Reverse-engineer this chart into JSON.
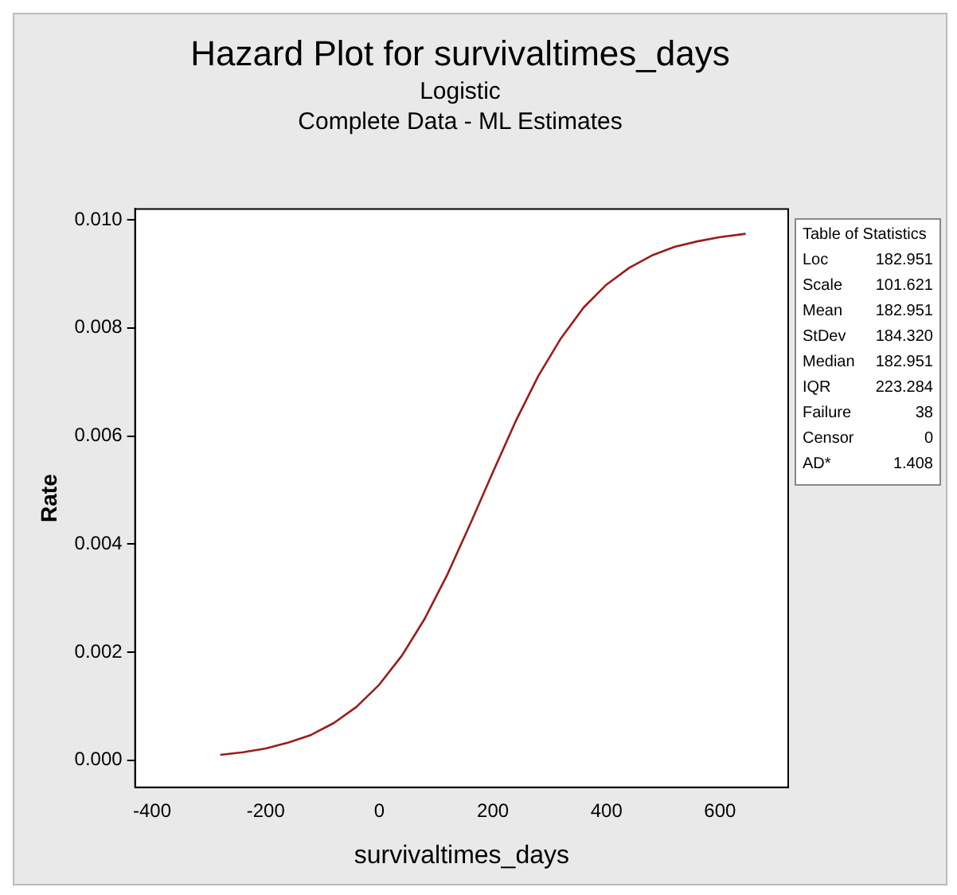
{
  "chart_data": {
    "type": "line",
    "title": "Hazard Plot for survivaltimes_days",
    "subtitle": "Logistic\nComplete Data - ML Estimates",
    "xlabel": "survivaltimes_days",
    "ylabel": "Rate",
    "x": [
      -280,
      -240,
      -200,
      -160,
      -120,
      -80,
      -40,
      0,
      40,
      80,
      120,
      160,
      200,
      240,
      280,
      320,
      360,
      400,
      440,
      480,
      520,
      560,
      600,
      645
    ],
    "series": [
      {
        "color": "#9b1c1c",
        "values": [
          0.0001,
          0.00015,
          0.00022,
          0.00033,
          0.00047,
          0.00069,
          0.00099,
          0.0014,
          0.00194,
          0.00262,
          0.00344,
          0.00437,
          0.00533,
          0.00627,
          0.00711,
          0.00781,
          0.00838,
          0.0088,
          0.00911,
          0.00934,
          0.0095,
          0.0096,
          0.00968,
          0.00974
        ]
      }
    ],
    "xlim": [
      -430,
      720
    ],
    "xticks": [
      -400,
      -200,
      0,
      200,
      400,
      600
    ],
    "ylim": [
      -0.0005,
      0.0102
    ],
    "yticks": [
      {
        "value": 0,
        "label": "0.000"
      },
      {
        "value": 0.002,
        "label": "0.002"
      },
      {
        "value": 0.004,
        "label": "0.004"
      },
      {
        "value": 0.006,
        "label": "0.006"
      },
      {
        "value": 0.008,
        "label": "0.008"
      },
      {
        "value": 0.01,
        "label": "0.010"
      }
    ],
    "grid": false,
    "legend": false,
    "marker": "none",
    "line_style": "solid",
    "annotations": [
      "Table of Statistics",
      "Loc 182.951",
      "Scale 101.621",
      "Mean 182.951",
      "StDev 184.320",
      "Median 182.951",
      "IQR 223.284",
      "Failure 38",
      "Censor 0",
      "AD* 1.408"
    ]
  }
}
